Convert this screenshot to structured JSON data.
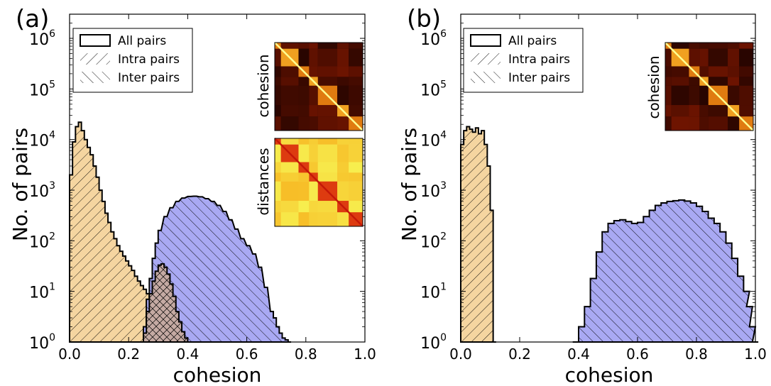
{
  "chart_data": [
    {
      "panel_label": "(a)",
      "type": "area",
      "xlabel": "cohesion",
      "ylabel": "No. of pairs",
      "xlim": [
        0.0,
        1.0
      ],
      "ylim": [
        1,
        3000000
      ],
      "yscale": "log",
      "xticks": [
        "0.0",
        "0.2",
        "0.4",
        "0.6",
        "0.8",
        "1.0"
      ],
      "yticks": [
        {
          "base": "10",
          "exp": "0",
          "value": 1
        },
        {
          "base": "10",
          "exp": "1",
          "value": 10
        },
        {
          "base": "10",
          "exp": "2",
          "value": 100
        },
        {
          "base": "10",
          "exp": "3",
          "value": 1000
        },
        {
          "base": "10",
          "exp": "4",
          "value": 10000
        },
        {
          "base": "10",
          "exp": "5",
          "value": 100000
        },
        {
          "base": "10",
          "exp": "6",
          "value": 1000000
        }
      ],
      "legend": {
        "placement": "upper-left",
        "entries": [
          {
            "label": "All pairs",
            "style": "outline"
          },
          {
            "label": "Intra pairs",
            "style": "hatch-forward"
          },
          {
            "label": "Inter pairs",
            "style": "hatch-back"
          }
        ]
      },
      "insets": [
        {
          "label": "cohesion",
          "colormap": "dark-hot",
          "blocks": 7
        },
        {
          "label": "distances",
          "colormap": "light-hot",
          "blocks": 7
        }
      ],
      "series": [
        {
          "name": "Intra pairs",
          "color": "#f5d5a0",
          "hatch": "forward",
          "x": [
            0.0,
            0.01,
            0.02,
            0.03,
            0.04,
            0.05,
            0.06,
            0.07,
            0.08,
            0.09,
            0.1,
            0.11,
            0.12,
            0.13,
            0.14,
            0.15,
            0.16,
            0.17,
            0.18,
            0.19,
            0.2,
            0.21,
            0.22,
            0.23,
            0.24,
            0.25,
            0.26,
            0.27,
            0.28,
            0.29,
            0.3,
            0.31,
            0.32,
            0.33,
            0.34,
            0.35,
            0.36,
            0.37,
            0.38,
            0.39,
            0.4
          ],
          "y": [
            2000,
            9000,
            18000,
            22000,
            15000,
            10000,
            7000,
            5000,
            3000,
            1800,
            1000,
            600,
            350,
            230,
            150,
            110,
            80,
            62,
            50,
            40,
            32,
            26,
            20,
            16,
            13,
            11,
            9,
            8,
            6,
            5,
            4,
            3.5,
            3,
            2.5,
            2,
            1.8,
            1.5,
            1.3,
            1.1,
            1.0,
            1.0
          ]
        },
        {
          "name": "Inter pairs",
          "color": "#a9a9f3",
          "hatch": "back",
          "x": [
            0.24,
            0.25,
            0.26,
            0.27,
            0.28,
            0.29,
            0.3,
            0.32,
            0.34,
            0.36,
            0.38,
            0.4,
            0.42,
            0.44,
            0.46,
            0.48,
            0.5,
            0.52,
            0.54,
            0.56,
            0.58,
            0.6,
            0.62,
            0.64,
            0.66,
            0.68,
            0.69,
            0.7,
            0.71,
            0.72,
            0.73,
            0.74
          ],
          "y": [
            1,
            2,
            7,
            18,
            45,
            90,
            160,
            300,
            450,
            600,
            700,
            750,
            760,
            740,
            680,
            600,
            500,
            380,
            260,
            170,
            110,
            80,
            55,
            30,
            12,
            4,
            3,
            2,
            1.5,
            1.2,
            1.1,
            1
          ]
        },
        {
          "name": "Overlap",
          "color": "#c5aaa3",
          "hatch": "cross",
          "x": [
            0.24,
            0.25,
            0.26,
            0.27,
            0.28,
            0.29,
            0.3,
            0.31,
            0.32,
            0.33,
            0.34,
            0.35,
            0.36,
            0.37,
            0.38,
            0.39,
            0.4
          ],
          "y": [
            1,
            1.5,
            4,
            9,
            16,
            25,
            33,
            35,
            30,
            22,
            14,
            8,
            4,
            2.5,
            1.6,
            1.2,
            1
          ]
        }
      ]
    },
    {
      "panel_label": "(b)",
      "type": "area",
      "xlabel": "cohesion",
      "ylabel": "No. of pairs",
      "xlim": [
        0.0,
        1.0
      ],
      "ylim": [
        1,
        3000000
      ],
      "yscale": "log",
      "xticks": [
        "0.0",
        "0.2",
        "0.4",
        "0.6",
        "0.8",
        "1.0"
      ],
      "yticks": [
        {
          "base": "10",
          "exp": "0",
          "value": 1
        },
        {
          "base": "10",
          "exp": "1",
          "value": 10
        },
        {
          "base": "10",
          "exp": "2",
          "value": 100
        },
        {
          "base": "10",
          "exp": "3",
          "value": 1000
        },
        {
          "base": "10",
          "exp": "4",
          "value": 10000
        },
        {
          "base": "10",
          "exp": "5",
          "value": 100000
        },
        {
          "base": "10",
          "exp": "6",
          "value": 1000000
        }
      ],
      "legend": {
        "placement": "upper-left",
        "entries": [
          {
            "label": "All pairs",
            "style": "outline"
          },
          {
            "label": "Intra pairs",
            "style": "hatch-forward"
          },
          {
            "label": "Inter pairs",
            "style": "hatch-back"
          }
        ]
      },
      "insets": [
        {
          "label": "cohesion",
          "colormap": "dark-hot",
          "blocks": 7
        }
      ],
      "series": [
        {
          "name": "Intra pairs",
          "color": "#f5d5a0",
          "hatch": "forward",
          "x": [
            0.0,
            0.01,
            0.02,
            0.03,
            0.04,
            0.05,
            0.06,
            0.07,
            0.08,
            0.09,
            0.1,
            0.11
          ],
          "y": [
            8000,
            15000,
            18000,
            16000,
            14000,
            17000,
            13000,
            15000,
            8000,
            3000,
            400,
            1
          ]
        },
        {
          "name": "Inter pairs",
          "color": "#a9a9f3",
          "hatch": "back",
          "x": [
            0.38,
            0.4,
            0.42,
            0.44,
            0.46,
            0.48,
            0.5,
            0.52,
            0.54,
            0.56,
            0.58,
            0.6,
            0.62,
            0.64,
            0.66,
            0.68,
            0.7,
            0.72,
            0.74,
            0.76,
            0.78,
            0.8,
            0.82,
            0.84,
            0.86,
            0.88,
            0.9,
            0.92,
            0.94,
            0.96,
            0.97,
            0.98,
            0.99
          ],
          "y": [
            1,
            2,
            5,
            18,
            60,
            150,
            220,
            250,
            260,
            240,
            220,
            230,
            300,
            400,
            500,
            560,
            600,
            620,
            640,
            610,
            560,
            480,
            380,
            280,
            220,
            150,
            90,
            45,
            20,
            10,
            5,
            2,
            1
          ]
        }
      ]
    }
  ]
}
